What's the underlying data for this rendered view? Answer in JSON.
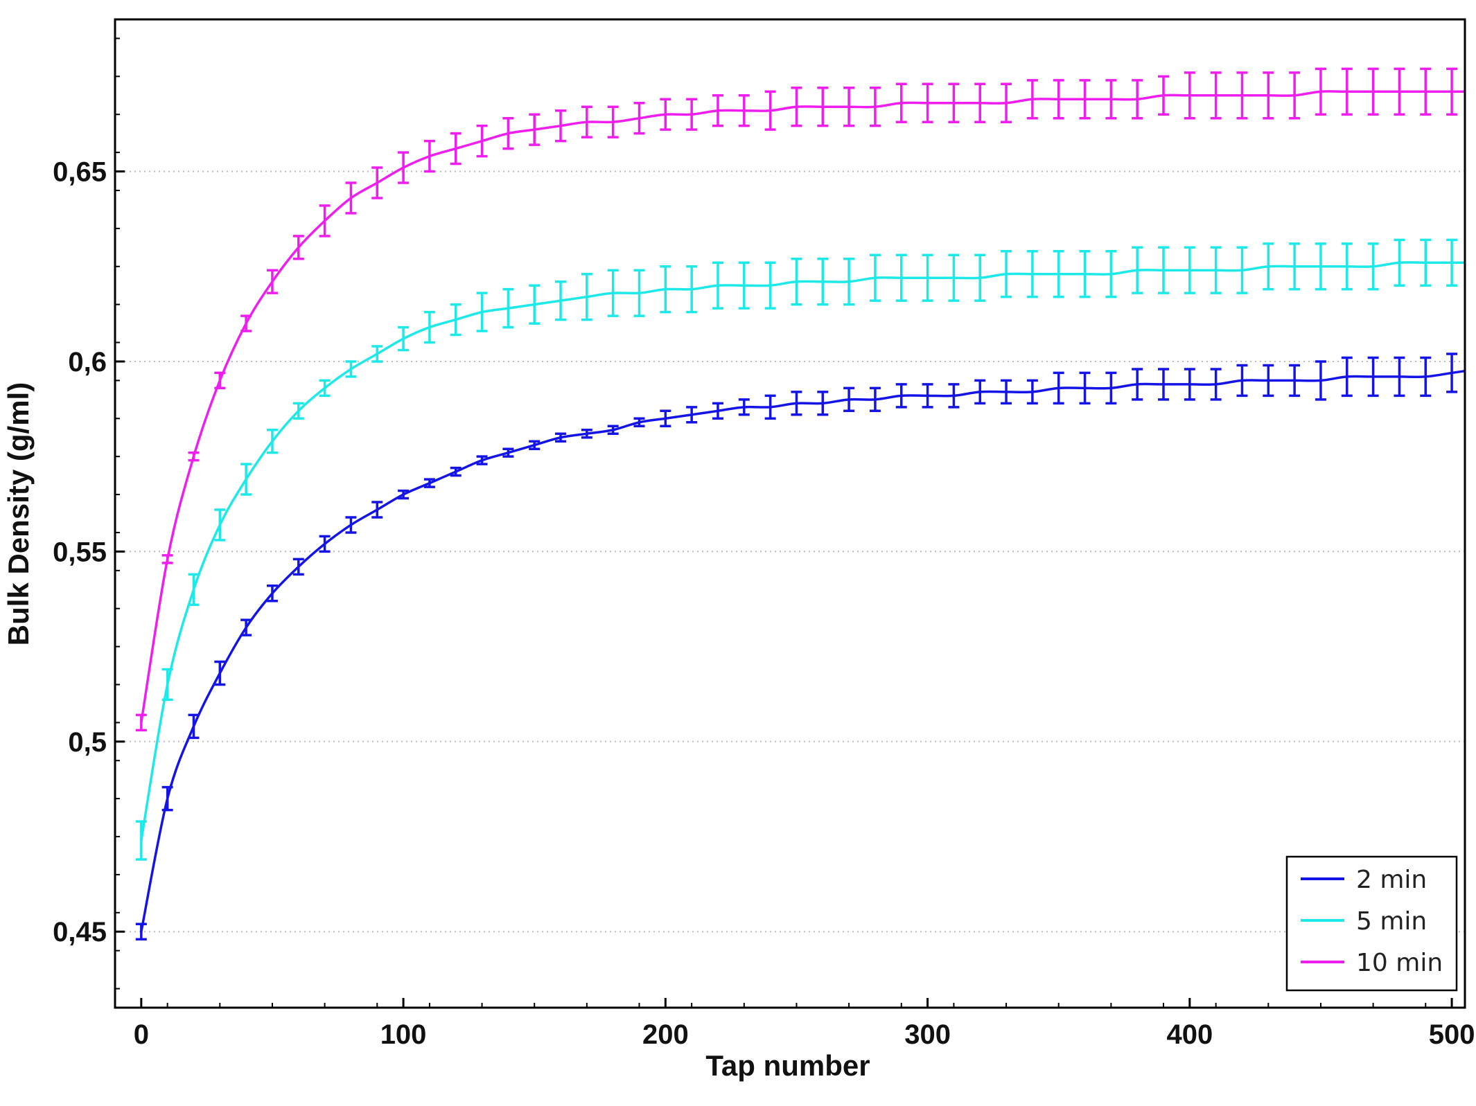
{
  "chart_data": {
    "type": "line",
    "title": "",
    "xlabel": "Tap number",
    "ylabel": "Bulk Density (g/ml)",
    "xlim": [
      -10,
      505
    ],
    "ylim": [
      0.43,
      0.69
    ],
    "x_ticks": [
      "0",
      "100",
      "200",
      "300",
      "400",
      "500"
    ],
    "y_ticks": [
      "0,45",
      "0,5",
      "0,55",
      "0,6",
      "0,65"
    ],
    "grid": "horizontal dotted",
    "legend_position": "bottom-right",
    "x": [
      0,
      10,
      20,
      30,
      40,
      50,
      60,
      70,
      80,
      90,
      100,
      110,
      120,
      130,
      140,
      150,
      160,
      170,
      180,
      190,
      200,
      210,
      220,
      230,
      240,
      250,
      260,
      270,
      280,
      290,
      300,
      310,
      320,
      330,
      340,
      350,
      360,
      370,
      380,
      390,
      400,
      410,
      420,
      430,
      440,
      450,
      460,
      470,
      480,
      490,
      500
    ],
    "series": [
      {
        "name": "2 min",
        "color": "#1414e6",
        "values": [
          0.45,
          0.485,
          0.504,
          0.518,
          0.53,
          0.539,
          0.546,
          0.552,
          0.557,
          0.561,
          0.565,
          0.568,
          0.571,
          0.574,
          0.576,
          0.578,
          0.58,
          0.581,
          0.582,
          0.584,
          0.585,
          0.586,
          0.587,
          0.588,
          0.588,
          0.589,
          0.589,
          0.59,
          0.59,
          0.591,
          0.591,
          0.591,
          0.592,
          0.592,
          0.592,
          0.593,
          0.593,
          0.593,
          0.594,
          0.594,
          0.594,
          0.594,
          0.595,
          0.595,
          0.595,
          0.595,
          0.596,
          0.596,
          0.596,
          0.596,
          0.597
        ],
        "errors": [
          0.002,
          0.003,
          0.003,
          0.003,
          0.002,
          0.002,
          0.002,
          0.002,
          0.002,
          0.002,
          0.001,
          0.001,
          0.001,
          0.001,
          0.001,
          0.001,
          0.001,
          0.001,
          0.001,
          0.001,
          0.002,
          0.002,
          0.002,
          0.002,
          0.003,
          0.003,
          0.003,
          0.003,
          0.003,
          0.003,
          0.003,
          0.003,
          0.003,
          0.003,
          0.003,
          0.004,
          0.004,
          0.004,
          0.004,
          0.004,
          0.004,
          0.004,
          0.004,
          0.004,
          0.004,
          0.005,
          0.005,
          0.005,
          0.005,
          0.005,
          0.005
        ]
      },
      {
        "name": "5 min",
        "color": "#1de9e9",
        "values": [
          0.474,
          0.515,
          0.54,
          0.557,
          0.569,
          0.579,
          0.587,
          0.593,
          0.598,
          0.602,
          0.606,
          0.609,
          0.611,
          0.613,
          0.614,
          0.615,
          0.616,
          0.617,
          0.618,
          0.618,
          0.619,
          0.619,
          0.62,
          0.62,
          0.62,
          0.621,
          0.621,
          0.621,
          0.622,
          0.622,
          0.622,
          0.622,
          0.622,
          0.623,
          0.623,
          0.623,
          0.623,
          0.623,
          0.624,
          0.624,
          0.624,
          0.624,
          0.624,
          0.625,
          0.625,
          0.625,
          0.625,
          0.625,
          0.626,
          0.626,
          0.626
        ],
        "errors": [
          0.005,
          0.004,
          0.004,
          0.004,
          0.004,
          0.003,
          0.002,
          0.002,
          0.002,
          0.002,
          0.003,
          0.004,
          0.004,
          0.005,
          0.005,
          0.005,
          0.005,
          0.006,
          0.006,
          0.006,
          0.006,
          0.006,
          0.006,
          0.006,
          0.006,
          0.006,
          0.006,
          0.006,
          0.006,
          0.006,
          0.006,
          0.006,
          0.006,
          0.006,
          0.006,
          0.006,
          0.006,
          0.006,
          0.006,
          0.006,
          0.006,
          0.006,
          0.006,
          0.006,
          0.006,
          0.006,
          0.006,
          0.006,
          0.006,
          0.006,
          0.006
        ]
      },
      {
        "name": "10 min",
        "color": "#ee1eee",
        "values": [
          0.505,
          0.548,
          0.575,
          0.595,
          0.61,
          0.621,
          0.63,
          0.637,
          0.643,
          0.647,
          0.651,
          0.654,
          0.656,
          0.658,
          0.66,
          0.661,
          0.662,
          0.663,
          0.663,
          0.664,
          0.665,
          0.665,
          0.666,
          0.666,
          0.666,
          0.667,
          0.667,
          0.667,
          0.667,
          0.668,
          0.668,
          0.668,
          0.668,
          0.668,
          0.669,
          0.669,
          0.669,
          0.669,
          0.669,
          0.67,
          0.67,
          0.67,
          0.67,
          0.67,
          0.67,
          0.671,
          0.671,
          0.671,
          0.671,
          0.671,
          0.671
        ],
        "errors": [
          0.002,
          0.001,
          0.001,
          0.002,
          0.002,
          0.003,
          0.003,
          0.004,
          0.004,
          0.004,
          0.004,
          0.004,
          0.004,
          0.004,
          0.004,
          0.004,
          0.004,
          0.004,
          0.004,
          0.004,
          0.004,
          0.004,
          0.004,
          0.004,
          0.005,
          0.005,
          0.005,
          0.005,
          0.005,
          0.005,
          0.005,
          0.005,
          0.005,
          0.005,
          0.005,
          0.005,
          0.005,
          0.005,
          0.005,
          0.005,
          0.006,
          0.006,
          0.006,
          0.006,
          0.006,
          0.006,
          0.006,
          0.006,
          0.006,
          0.006,
          0.006
        ]
      }
    ]
  }
}
